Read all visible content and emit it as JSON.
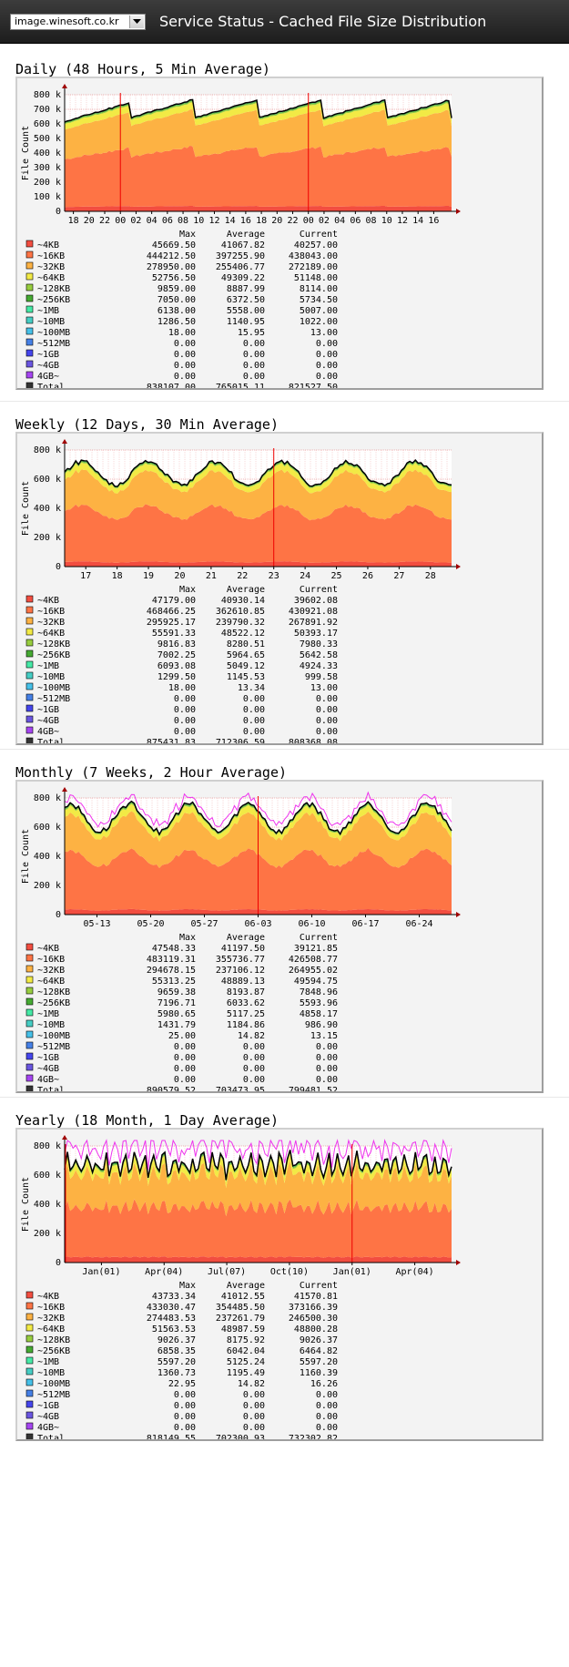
{
  "header": {
    "host": "image.winesoft.co.kr",
    "title": "Service Status - Cached File Size Distribution"
  },
  "colors": {
    "bg_frame": "#f3f3f3",
    "plot_bg": "#ffffff",
    "grid_minor": "#f0b0b0",
    "grid_major": "#e07070",
    "marker": "#ee0000",
    "total_line": "#000000",
    "series": [
      "#f24d40",
      "#fe7445",
      "#fdb243",
      "#f2ea45",
      "#97cd3f",
      "#45aa32",
      "#45e9a6",
      "#45cdc4",
      "#45c0e8",
      "#4580e6",
      "#4545ec",
      "#6a55e0",
      "#a545f0",
      "#333333"
    ]
  },
  "chart_data": [
    {
      "type": "area",
      "heading": "Daily (48 Hours, 5 Min Average)",
      "ylabel": "File Count",
      "yticks": [
        "0",
        "100 k",
        "200 k",
        "300 k",
        "400 k",
        "500 k",
        "600 k",
        "700 k",
        "800 k"
      ],
      "ylim": [
        0,
        800000
      ],
      "xticks": [
        "18",
        "20",
        "22",
        "00",
        "02",
        "04",
        "06",
        "08",
        "10",
        "12",
        "14",
        "16",
        "18",
        "20",
        "22",
        "00",
        "02",
        "04",
        "06",
        "08",
        "10",
        "12",
        "14",
        "16"
      ],
      "vlines": [
        3,
        15
      ],
      "shape": "daily",
      "table": {
        "headers": [
          "Max",
          "Average",
          "Current"
        ],
        "rows": [
          {
            "name": "~4KB",
            "max": "45669.50",
            "avg": "41067.82",
            "cur": "40257.00"
          },
          {
            "name": "~16KB",
            "max": "444212.50",
            "avg": "397255.90",
            "cur": "438043.00"
          },
          {
            "name": "~32KB",
            "max": "278950.00",
            "avg": "255406.77",
            "cur": "272189.00"
          },
          {
            "name": "~64KB",
            "max": "52756.50",
            "avg": "49309.22",
            "cur": "51148.00"
          },
          {
            "name": "~128KB",
            "max": "9859.00",
            "avg": "8887.99",
            "cur": "8114.00"
          },
          {
            "name": "~256KB",
            "max": "7050.00",
            "avg": "6372.50",
            "cur": "5734.50"
          },
          {
            "name": "~1MB",
            "max": "6138.00",
            "avg": "5558.00",
            "cur": "5007.00"
          },
          {
            "name": "~10MB",
            "max": "1286.50",
            "avg": "1140.95",
            "cur": "1022.00"
          },
          {
            "name": "~100MB",
            "max": "18.00",
            "avg": "15.95",
            "cur": "13.00"
          },
          {
            "name": "~512MB",
            "max": "0.00",
            "avg": "0.00",
            "cur": "0.00"
          },
          {
            "name": "~1GB",
            "max": "0.00",
            "avg": "0.00",
            "cur": "0.00"
          },
          {
            "name": "~4GB",
            "max": "0.00",
            "avg": "0.00",
            "cur": "0.00"
          },
          {
            "name": "4GB~",
            "max": "0.00",
            "avg": "0.00",
            "cur": "0.00"
          },
          {
            "name": "Total",
            "max": "838107.00",
            "avg": "765015.11",
            "cur": "821527.50"
          }
        ]
      }
    },
    {
      "type": "area",
      "heading": "Weekly (12 Days, 30 Min Average)",
      "ylabel": "File Count",
      "yticks": [
        "0",
        "200 k",
        "400 k",
        "600 k",
        "800 k"
      ],
      "ylim": [
        0,
        800000
      ],
      "xticks": [
        "17",
        "18",
        "19",
        "20",
        "21",
        "22",
        "23",
        "24",
        "25",
        "26",
        "27",
        "28"
      ],
      "vlines": [
        6
      ],
      "shape": "weekly",
      "table": {
        "headers": [
          "Max",
          "Average",
          "Current"
        ],
        "rows": [
          {
            "name": "~4KB",
            "max": "47179.00",
            "avg": "40930.14",
            "cur": "39602.08"
          },
          {
            "name": "~16KB",
            "max": "468466.25",
            "avg": "362610.85",
            "cur": "430921.08"
          },
          {
            "name": "~32KB",
            "max": "295925.17",
            "avg": "239790.32",
            "cur": "267891.92"
          },
          {
            "name": "~64KB",
            "max": "55591.33",
            "avg": "48522.12",
            "cur": "50393.17"
          },
          {
            "name": "~128KB",
            "max": "9816.83",
            "avg": "8280.51",
            "cur": "7980.33"
          },
          {
            "name": "~256KB",
            "max": "7002.25",
            "avg": "5964.65",
            "cur": "5642.58"
          },
          {
            "name": "~1MB",
            "max": "6093.08",
            "avg": "5049.12",
            "cur": "4924.33"
          },
          {
            "name": "~10MB",
            "max": "1299.50",
            "avg": "1145.53",
            "cur": "999.58"
          },
          {
            "name": "~100MB",
            "max": "18.00",
            "avg": "13.34",
            "cur": "13.00"
          },
          {
            "name": "~512MB",
            "max": "0.00",
            "avg": "0.00",
            "cur": "0.00"
          },
          {
            "name": "~1GB",
            "max": "0.00",
            "avg": "0.00",
            "cur": "0.00"
          },
          {
            "name": "~4GB",
            "max": "0.00",
            "avg": "0.00",
            "cur": "0.00"
          },
          {
            "name": "4GB~",
            "max": "0.00",
            "avg": "0.00",
            "cur": "0.00"
          },
          {
            "name": "Total",
            "max": "875431.83",
            "avg": "712306.59",
            "cur": "808368.08"
          }
        ]
      }
    },
    {
      "type": "area",
      "heading": "Monthly (7 Weeks, 2 Hour Average)",
      "ylabel": "File Count",
      "yticks": [
        "0",
        "200 k",
        "400 k",
        "600 k",
        "800 k"
      ],
      "ylim": [
        0,
        800000
      ],
      "xticks": [
        "05-13",
        "05-20",
        "05-27",
        "06-03",
        "06-10",
        "06-17",
        "06-24"
      ],
      "vlines": [
        3
      ],
      "shape": "monthly",
      "table": {
        "headers": [
          "Max",
          "Average",
          "Current"
        ],
        "rows": [
          {
            "name": "~4KB",
            "max": "47548.33",
            "avg": "41197.50",
            "cur": "39121.85"
          },
          {
            "name": "~16KB",
            "max": "483119.31",
            "avg": "355736.77",
            "cur": "426508.77"
          },
          {
            "name": "~32KB",
            "max": "294678.15",
            "avg": "237106.12",
            "cur": "264955.02"
          },
          {
            "name": "~64KB",
            "max": "55313.25",
            "avg": "48889.13",
            "cur": "49594.75"
          },
          {
            "name": "~128KB",
            "max": "9659.38",
            "avg": "8193.87",
            "cur": "7848.96"
          },
          {
            "name": "~256KB",
            "max": "7196.71",
            "avg": "6033.62",
            "cur": "5593.96"
          },
          {
            "name": "~1MB",
            "max": "5980.65",
            "avg": "5117.25",
            "cur": "4858.17"
          },
          {
            "name": "~10MB",
            "max": "1431.79",
            "avg": "1184.86",
            "cur": "986.90"
          },
          {
            "name": "~100MB",
            "max": "25.00",
            "avg": "14.82",
            "cur": "13.15"
          },
          {
            "name": "~512MB",
            "max": "0.00",
            "avg": "0.00",
            "cur": "0.00"
          },
          {
            "name": "~1GB",
            "max": "0.00",
            "avg": "0.00",
            "cur": "0.00"
          },
          {
            "name": "~4GB",
            "max": "0.00",
            "avg": "0.00",
            "cur": "0.00"
          },
          {
            "name": "4GB~",
            "max": "0.00",
            "avg": "0.00",
            "cur": "0.00"
          },
          {
            "name": "Total",
            "max": "890579.52",
            "avg": "703473.95",
            "cur": "799481.52"
          }
        ]
      }
    },
    {
      "type": "area",
      "heading": "Yearly (18 Month, 1 Day Average)",
      "ylabel": "File Count",
      "yticks": [
        "0",
        "200 k",
        "400 k",
        "600 k",
        "800 k"
      ],
      "ylim": [
        0,
        800000
      ],
      "xticks": [
        "Jan(01)",
        "Apr(04)",
        "Jul(07)",
        "Oct(10)",
        "Jan(01)",
        "Apr(04)"
      ],
      "vlines": [
        0,
        4
      ],
      "shape": "yearly",
      "table": {
        "headers": [
          "Max",
          "Average",
          "Current"
        ],
        "rows": [
          {
            "name": "~4KB",
            "max": "43733.34",
            "avg": "41012.55",
            "cur": "41570.81"
          },
          {
            "name": "~16KB",
            "max": "433030.47",
            "avg": "354485.50",
            "cur": "373166.39"
          },
          {
            "name": "~32KB",
            "max": "274483.53",
            "avg": "237261.79",
            "cur": "246500.30"
          },
          {
            "name": "~64KB",
            "max": "51563.53",
            "avg": "48987.59",
            "cur": "48800.28"
          },
          {
            "name": "~128KB",
            "max": "9026.37",
            "avg": "8175.92",
            "cur": "9026.37"
          },
          {
            "name": "~256KB",
            "max": "6858.35",
            "avg": "6042.04",
            "cur": "6464.82"
          },
          {
            "name": "~1MB",
            "max": "5597.20",
            "avg": "5125.24",
            "cur": "5597.20"
          },
          {
            "name": "~10MB",
            "max": "1360.73",
            "avg": "1195.49",
            "cur": "1160.39"
          },
          {
            "name": "~100MB",
            "max": "22.95",
            "avg": "14.82",
            "cur": "16.26"
          },
          {
            "name": "~512MB",
            "max": "0.00",
            "avg": "0.00",
            "cur": "0.00"
          },
          {
            "name": "~1GB",
            "max": "0.00",
            "avg": "0.00",
            "cur": "0.00"
          },
          {
            "name": "~4GB",
            "max": "0.00",
            "avg": "0.00",
            "cur": "0.00"
          },
          {
            "name": "4GB~",
            "max": "0.00",
            "avg": "0.00",
            "cur": "0.00"
          },
          {
            "name": "Total",
            "max": "818149.55",
            "avg": "702300.93",
            "cur": "732302.82"
          }
        ]
      }
    }
  ]
}
